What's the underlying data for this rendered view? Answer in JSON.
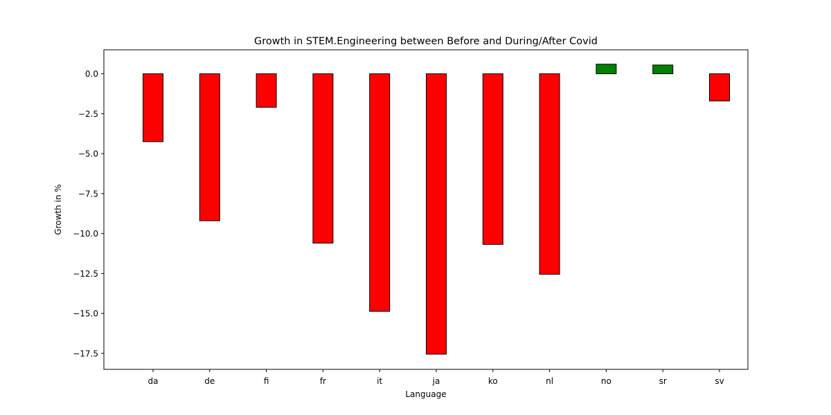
{
  "chart_data": {
    "type": "bar",
    "title": "Growth in STEM.Engineering between Before and During/After Covid",
    "xlabel": "Language",
    "ylabel": "Growth in %",
    "categories": [
      "da",
      "de",
      "fi",
      "fr",
      "it",
      "ja",
      "ko",
      "nl",
      "no",
      "sr",
      "sv"
    ],
    "values": [
      -4.25,
      -9.2,
      -2.1,
      -10.6,
      -14.87,
      -17.55,
      -10.68,
      -12.55,
      0.6,
      0.55,
      -1.7
    ],
    "ylim": [
      -18.5,
      1.5
    ],
    "yticks": [
      0.0,
      -2.5,
      -5.0,
      -7.5,
      -10.0,
      -12.5,
      -15.0,
      -17.5
    ],
    "ytick_labels": [
      "0.0",
      "−2.5",
      "−5.0",
      "−7.5",
      "−10.0",
      "−12.5",
      "−15.0",
      "−17.5"
    ],
    "colors": {
      "negative": "#ff0000",
      "positive": "#008000",
      "edge": "#000000"
    },
    "grid": false,
    "legend": "none"
  }
}
